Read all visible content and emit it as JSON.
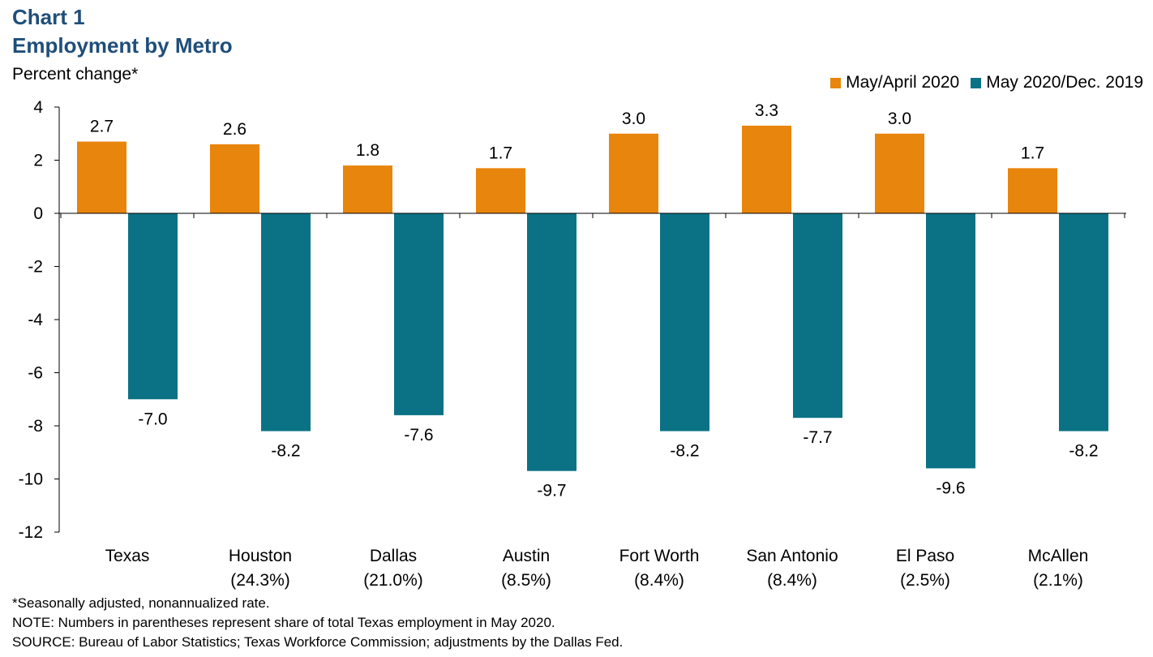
{
  "header": {
    "title_line1": "Chart 1",
    "title_line2": "Employment by Metro"
  },
  "chart_data": {
    "type": "bar",
    "ylabel": "Percent change*",
    "categories": [
      "Texas",
      "Houston",
      "Dallas",
      "Austin",
      "Fort Worth",
      "San Antonio",
      "El Paso",
      "McAllen"
    ],
    "category_sublabels": [
      "",
      "(24.3%)",
      "(21.0%)",
      "(8.5%)",
      "(8.4%)",
      "(8.4%)",
      "(2.5%)",
      "(2.1%)"
    ],
    "series": [
      {
        "name": "May/April 2020",
        "color": "#e8850c",
        "values": [
          2.7,
          2.6,
          1.8,
          1.7,
          3.0,
          3.3,
          3.0,
          1.7
        ]
      },
      {
        "name": "May 2020/Dec. 2019",
        "color": "#0b7285",
        "values": [
          -7.0,
          -8.2,
          -7.6,
          -9.7,
          -8.2,
          -7.7,
          -9.6,
          -8.2
        ]
      }
    ],
    "ylim": [
      -12,
      4
    ],
    "yticks": [
      4,
      2,
      0,
      -2,
      -4,
      -6,
      -8,
      -10,
      -12
    ],
    "legend_position": "top-right",
    "grid": false,
    "data_labels": true
  },
  "footer": {
    "note1": "*Seasonally adjusted, nonannualized rate.",
    "note2": "NOTE: Numbers in parentheses represent share of total Texas employment in May 2020.",
    "note3": "SOURCE: Bureau of Labor Statistics; Texas Workforce Commission; adjustments by the Dallas Fed."
  }
}
